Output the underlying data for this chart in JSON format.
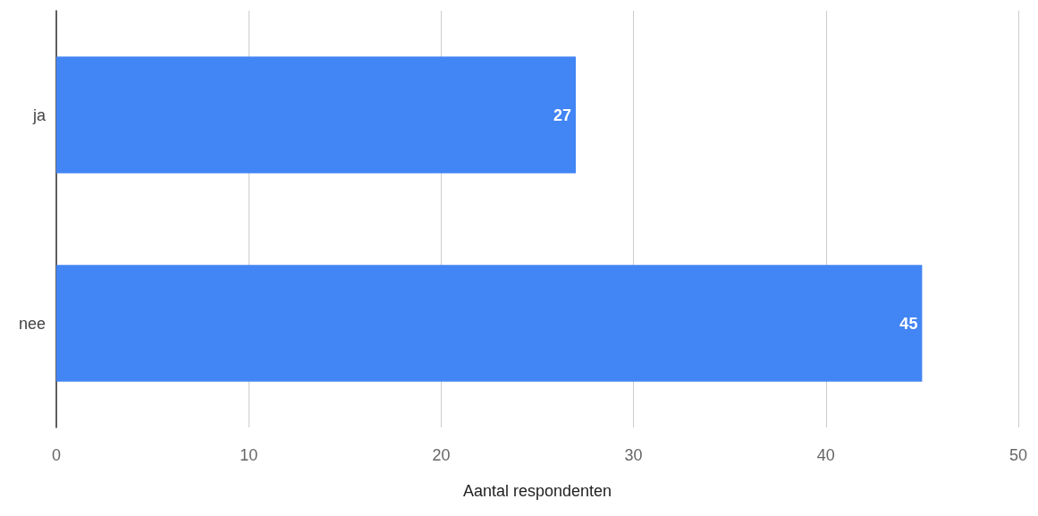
{
  "chart_data": {
    "type": "bar",
    "orientation": "horizontal",
    "xlabel": "Aantal respondenten",
    "categories": [
      "ja",
      "nee"
    ],
    "series": [
      {
        "color": "#4285f4",
        "values": [
          27,
          45
        ]
      }
    ],
    "xlim": [
      0,
      50
    ],
    "xticks": [
      0,
      10,
      20,
      30,
      40,
      50
    ],
    "grid": "x",
    "data_labels": true
  }
}
